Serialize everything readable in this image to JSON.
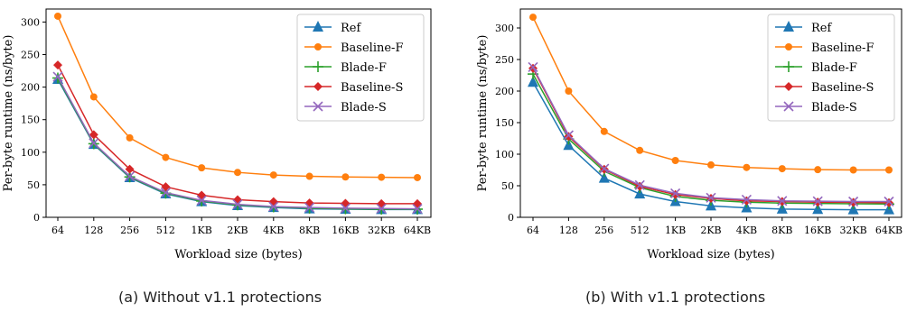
{
  "chart_data": [
    {
      "type": "line",
      "caption": "(a) Without v1.1 protections",
      "xlabel": "Workload size (bytes)",
      "ylabel": "Per-byte runtime (ns/byte)",
      "categories": [
        "64",
        "128",
        "256",
        "512",
        "1KB",
        "2KB",
        "4KB",
        "8KB",
        "16KB",
        "32KB",
        "64KB"
      ],
      "ylim": [
        0,
        320
      ],
      "yticks": [
        0,
        50,
        100,
        150,
        200,
        250,
        300
      ],
      "legend_position": "top-right",
      "grid": false,
      "series": [
        {
          "name": "Ref",
          "color": "#1f77b4",
          "marker": "triangle",
          "values": [
            212,
            112,
            61,
            36,
            24,
            18,
            15,
            13,
            12.5,
            12,
            12
          ]
        },
        {
          "name": "Baseline-F",
          "color": "#ff7f0e",
          "marker": "circle",
          "values": [
            309,
            185,
            122,
            92,
            76,
            69,
            65,
            63,
            62,
            61.5,
            61
          ]
        },
        {
          "name": "Blade-F",
          "color": "#2ca02c",
          "marker": "plus",
          "values": [
            214,
            113,
            62,
            37,
            25,
            19,
            16,
            14,
            13,
            12.5,
            12.5
          ]
        },
        {
          "name": "Baseline-S",
          "color": "#d62728",
          "marker": "diamond",
          "values": [
            234,
            127,
            74,
            47,
            34,
            27,
            24,
            22,
            21.5,
            21,
            21
          ]
        },
        {
          "name": "Blade-S",
          "color": "#9467bd",
          "marker": "x",
          "values": [
            216,
            114,
            63,
            38,
            26,
            20,
            16.5,
            15,
            14,
            13.5,
            13
          ]
        }
      ]
    },
    {
      "type": "line",
      "caption": "(b) With v1.1 protections",
      "xlabel": "Workload size (bytes)",
      "ylabel": "Per-byte runtime (ns/byte)",
      "categories": [
        "64",
        "128",
        "256",
        "512",
        "1KB",
        "2KB",
        "4KB",
        "8KB",
        "16KB",
        "32KB",
        "64KB"
      ],
      "ylim": [
        0,
        330
      ],
      "yticks": [
        0,
        50,
        100,
        150,
        200,
        250,
        300
      ],
      "legend_position": "top-right",
      "grid": false,
      "series": [
        {
          "name": "Ref",
          "color": "#1f77b4",
          "marker": "triangle",
          "values": [
            214,
            114,
            62,
            37,
            25,
            18,
            15,
            13,
            12.5,
            12,
            12
          ]
        },
        {
          "name": "Baseline-F",
          "color": "#ff7f0e",
          "marker": "circle",
          "values": [
            317,
            200,
            136,
            106,
            90,
            83,
            79,
            77,
            75.5,
            75,
            75
          ]
        },
        {
          "name": "Blade-F",
          "color": "#2ca02c",
          "marker": "plus",
          "values": [
            227,
            124,
            73,
            47,
            33,
            27,
            24,
            22.5,
            22,
            21.5,
            21
          ]
        },
        {
          "name": "Baseline-S",
          "color": "#d62728",
          "marker": "diamond",
          "values": [
            236,
            128,
            76,
            49,
            36,
            30,
            26,
            25,
            24,
            23.5,
            23
          ]
        },
        {
          "name": "Blade-S",
          "color": "#9467bd",
          "marker": "x",
          "values": [
            238,
            130,
            77,
            51,
            38,
            31,
            28,
            26,
            25.5,
            25,
            25
          ]
        }
      ]
    }
  ]
}
